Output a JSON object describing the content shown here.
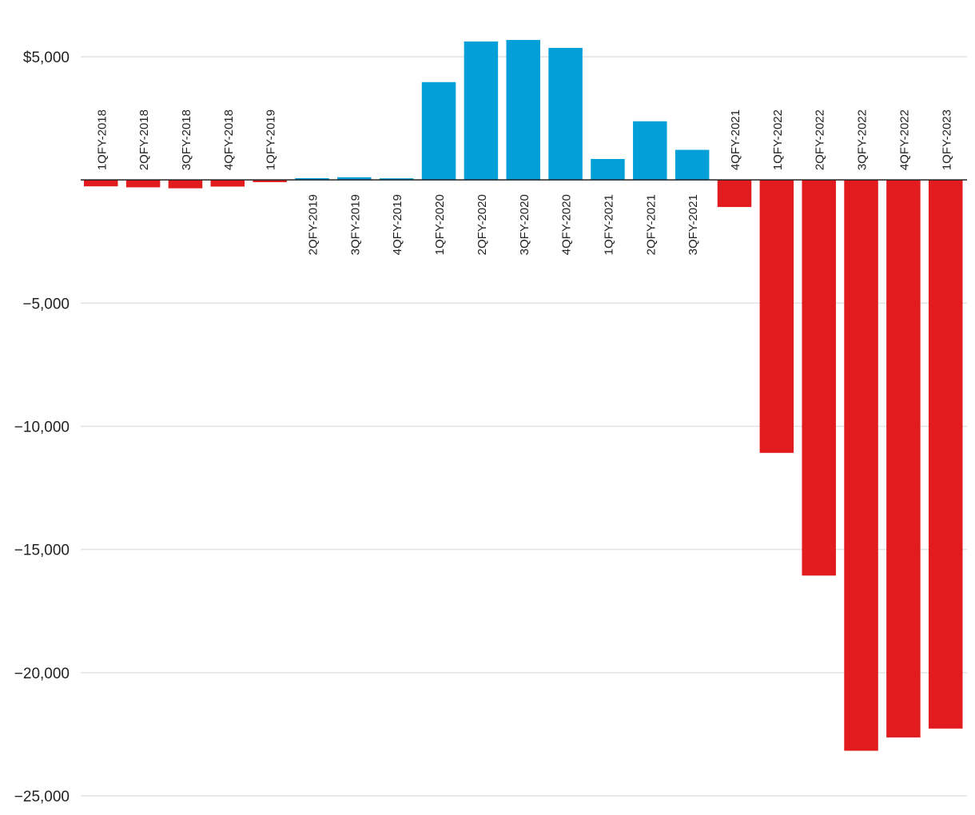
{
  "chart_data": {
    "type": "bar",
    "title": "",
    "xlabel": "",
    "ylabel": "",
    "ylim": [
      -25000,
      5000
    ],
    "grid": true,
    "yticks": [
      5000,
      -5000,
      -10000,
      -15000,
      -20000,
      -25000
    ],
    "ytick_labels": [
      "$5,000",
      "−5,000",
      "−10,000",
      "−15,000",
      "−20,000",
      "−25,000"
    ],
    "categories": [
      "1QFY-2018",
      "2QFY-2018",
      "3QFY-2018",
      "4QFY-2018",
      "1QFY-2019",
      "2QFY-2019",
      "3QFY-2019",
      "4QFY-2019",
      "1QFY-2020",
      "2QFY-2020",
      "3QFY-2020",
      "4QFY-2020",
      "1QFY-2021",
      "2QFY-2021",
      "3QFY-2021",
      "4QFY-2021",
      "1QFY-2022",
      "2QFY-2022",
      "3QFY-2022",
      "4QFY-2022",
      "1QFY-2023"
    ],
    "values": [
      -260,
      -300,
      -340,
      -270,
      -90,
      70,
      110,
      40,
      3970,
      5620,
      5680,
      5360,
      850,
      2380,
      1220,
      -1100,
      -11080,
      -16060,
      -23170,
      -22630,
      -22270
    ],
    "colors": {
      "positive": "#039fd9",
      "negative": "#e11b1e"
    }
  }
}
